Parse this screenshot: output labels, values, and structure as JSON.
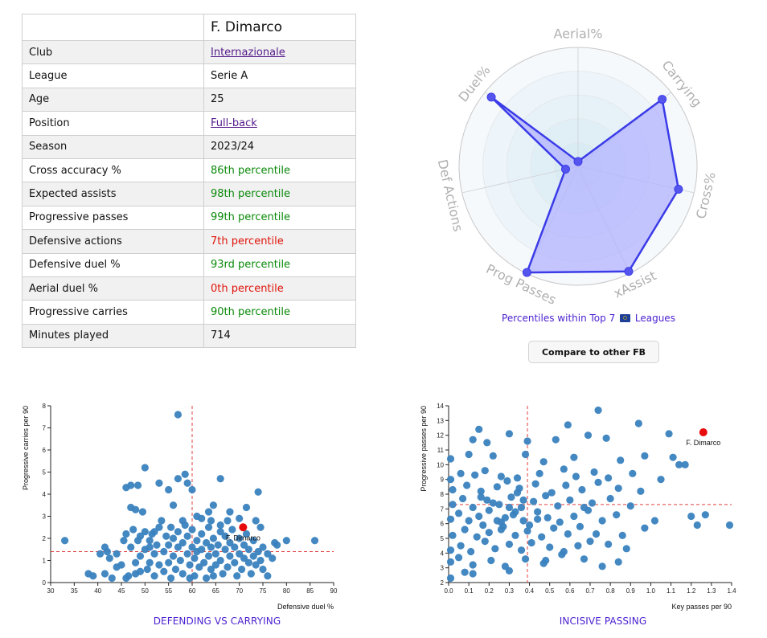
{
  "profile": {
    "name": "F. Dimarco",
    "rows": [
      {
        "label": "Club",
        "value": "Internazionale",
        "kind": "link"
      },
      {
        "label": "League",
        "value": "Serie A",
        "kind": "text"
      },
      {
        "label": "Age",
        "value": "25",
        "kind": "text"
      },
      {
        "label": "Position",
        "value": "Full-back",
        "kind": "link"
      },
      {
        "label": "Season",
        "value": "2023/24",
        "kind": "text"
      },
      {
        "label": "Cross accuracy %",
        "value": "86th percentile",
        "kind": "good"
      },
      {
        "label": "Expected assists",
        "value": "98th percentile",
        "kind": "good"
      },
      {
        "label": "Progressive passes",
        "value": "99th percentile",
        "kind": "good"
      },
      {
        "label": "Defensive actions",
        "value": "7th percentile",
        "kind": "bad"
      },
      {
        "label": "Defensive duel %",
        "value": "93rd percentile",
        "kind": "good"
      },
      {
        "label": "Aerial duel %",
        "value": "0th percentile",
        "kind": "bad"
      },
      {
        "label": "Progressive carries",
        "value": "90th percentile",
        "kind": "good"
      },
      {
        "label": "Minutes played",
        "value": "714",
        "kind": "text"
      }
    ]
  },
  "radar_caption": {
    "before": "Percentiles within Top 7",
    "flag_icon": "eu-flag-icon",
    "after": "Leagues"
  },
  "compare_button": "Compare to other FB",
  "colors": {
    "radar_fill": "#b3b3ff",
    "radar_stroke": "#3b3be8",
    "dots": "#3a82bf",
    "highlight": "#e80b0b",
    "ref_line": "#e04040",
    "title": "#4a1fd0"
  },
  "chart_data": [
    {
      "type": "radar",
      "axes": [
        "Aerial%",
        "Carrying",
        "Cross%",
        "xAssist",
        "Prog Passes",
        "Def Actions",
        "Duel%"
      ],
      "values": [
        0,
        90,
        86,
        98,
        99,
        7,
        93
      ],
      "range": [
        0,
        100
      ],
      "caption": "Percentiles within Top 7 Leagues"
    },
    {
      "type": "scatter",
      "title": "DEFENDING VS CARRYING",
      "xlabel": "Defensive duel %",
      "ylabel": "Progressive carries per 90",
      "xlim": [
        30,
        90
      ],
      "ylim": [
        0,
        8
      ],
      "xticks": [
        30,
        35,
        40,
        45,
        50,
        55,
        60,
        65,
        70,
        75,
        80,
        85,
        90
      ],
      "yticks": [
        0,
        1,
        2,
        3,
        4,
        5,
        6,
        7,
        8
      ],
      "ref_x": 60,
      "ref_y": 1.4,
      "highlight": {
        "label": "F. Dimarco",
        "x": 70.8,
        "y": 2.5
      },
      "points": [
        [
          57,
          7.6
        ],
        [
          50,
          5.2
        ],
        [
          58.5,
          4.9
        ],
        [
          57,
          4.7
        ],
        [
          59,
          4.5
        ],
        [
          66,
          4.7
        ],
        [
          53,
          4.5
        ],
        [
          55,
          4.2
        ],
        [
          60,
          4.2
        ],
        [
          46,
          4.3
        ],
        [
          47,
          4.4
        ],
        [
          48.5,
          4.4
        ],
        [
          74,
          4.1
        ],
        [
          47,
          3.4
        ],
        [
          48,
          3.3
        ],
        [
          49.5,
          3.2
        ],
        [
          56,
          3.5
        ],
        [
          61,
          3
        ],
        [
          63.5,
          3.2
        ],
        [
          64.5,
          3.5
        ],
        [
          68,
          3.2
        ],
        [
          71.5,
          3.4
        ],
        [
          73.5,
          2.8
        ],
        [
          74.5,
          2.5
        ],
        [
          33,
          1.9
        ],
        [
          86,
          1.9
        ],
        [
          80,
          1.9
        ],
        [
          78,
          1.7
        ],
        [
          38,
          0.4
        ],
        [
          39,
          0.3
        ],
        [
          41.5,
          0.4
        ],
        [
          40.5,
          1.3
        ],
        [
          41.5,
          1.6
        ],
        [
          42,
          1.4
        ],
        [
          42.5,
          1.1
        ],
        [
          43,
          0.2
        ],
        [
          44,
          0.7
        ],
        [
          45,
          0.8
        ],
        [
          45.5,
          1.9
        ],
        [
          46,
          2.2
        ],
        [
          46.5,
          0.3
        ],
        [
          46,
          0.2
        ],
        [
          47,
          1.6
        ],
        [
          47.5,
          2.4
        ],
        [
          48,
          0.9
        ],
        [
          48.5,
          1.9
        ],
        [
          49,
          1.2
        ],
        [
          49,
          0.5
        ],
        [
          50,
          2.3
        ],
        [
          50,
          1.5
        ],
        [
          50.5,
          0.6
        ],
        [
          51,
          1.9
        ],
        [
          51,
          0.9
        ],
        [
          51.5,
          2.2
        ],
        [
          52,
          1.3
        ],
        [
          52,
          0.3
        ],
        [
          52.5,
          1.7
        ],
        [
          53,
          2.5
        ],
        [
          53,
          0.8
        ],
        [
          53.5,
          2.8
        ],
        [
          54,
          1.4
        ],
        [
          54,
          0.5
        ],
        [
          54.5,
          2.1
        ],
        [
          55,
          1.7
        ],
        [
          55,
          0.9
        ],
        [
          55.5,
          0.2
        ],
        [
          55.5,
          2.5
        ],
        [
          56,
          1.2
        ],
        [
          56,
          2
        ],
        [
          56.5,
          0.6
        ],
        [
          57,
          1.6
        ],
        [
          57,
          2.3
        ],
        [
          57.5,
          1
        ],
        [
          58,
          1.8
        ],
        [
          58,
          0.4
        ],
        [
          58.5,
          2.6
        ],
        [
          59,
          1.3
        ],
        [
          59,
          2.1
        ],
        [
          59.5,
          0.8
        ],
        [
          60,
          1.6
        ],
        [
          60,
          2.4
        ],
        [
          60.5,
          1.1
        ],
        [
          60.5,
          0.3
        ],
        [
          61,
          1.9
        ],
        [
          61,
          1.4
        ],
        [
          61.5,
          0.7
        ],
        [
          62,
          2.2
        ],
        [
          62,
          1.5
        ],
        [
          62.5,
          0.9
        ],
        [
          63,
          1.8
        ],
        [
          63,
          0.2
        ],
        [
          63.5,
          1.2
        ],
        [
          63.5,
          2.5
        ],
        [
          64,
          1.6
        ],
        [
          64,
          0.6
        ],
        [
          64.5,
          2
        ],
        [
          65,
          1.3
        ],
        [
          65,
          0.8
        ],
        [
          65.5,
          1.7
        ],
        [
          66,
          2.3
        ],
        [
          66,
          1
        ],
        [
          66.5,
          0.4
        ],
        [
          67,
          1.5
        ],
        [
          67,
          2.1
        ],
        [
          67.5,
          0.7
        ],
        [
          68,
          1.8
        ],
        [
          68,
          1.2
        ],
        [
          68.5,
          2.4
        ],
        [
          69,
          0.9
        ],
        [
          69,
          1.6
        ],
        [
          69.5,
          0.3
        ],
        [
          70,
          1.3
        ],
        [
          70,
          2
        ],
        [
          70.5,
          0.6
        ],
        [
          71,
          1.7
        ],
        [
          71,
          1.1
        ],
        [
          71.5,
          2.2
        ],
        [
          72,
          0.9
        ],
        [
          72,
          1.5
        ],
        [
          72.5,
          0.4
        ],
        [
          73,
          1.2
        ],
        [
          73,
          1.9
        ],
        [
          73.5,
          0.8
        ],
        [
          74,
          1.4
        ],
        [
          74.5,
          1
        ],
        [
          75,
          1.6
        ],
        [
          75,
          0.6
        ],
        [
          76,
          1.3
        ],
        [
          76,
          0.3
        ],
        [
          77,
          1.1
        ],
        [
          77.5,
          1.8
        ],
        [
          64,
          2.8
        ],
        [
          62,
          2.9
        ],
        [
          70,
          2.9
        ],
        [
          66,
          2.6
        ],
        [
          58,
          2.8
        ],
        [
          52,
          2.3
        ],
        [
          48,
          0.4
        ],
        [
          44,
          1.3
        ],
        [
          49,
          2.1
        ],
        [
          51,
          1.6
        ],
        [
          59.5,
          0.2
        ],
        [
          64.5,
          0.3
        ],
        [
          67.5,
          2.8
        ]
      ]
    },
    {
      "type": "scatter",
      "title": "INCISIVE PASSING",
      "xlabel": "Key passes per 90",
      "ylabel": "Progressive passes per 90",
      "xlim": [
        0,
        1.4
      ],
      "ylim": [
        2,
        14
      ],
      "xticks": [
        0.0,
        0.1,
        0.2,
        0.3,
        0.4,
        0.5,
        0.6,
        0.7,
        0.8,
        0.9,
        1.0,
        1.1,
        1.2,
        1.3,
        1.4
      ],
      "yticks": [
        2,
        3,
        4,
        5,
        6,
        7,
        8,
        9,
        10,
        11,
        12,
        13,
        14
      ],
      "ref_x": 0.39,
      "ref_y": 7.3,
      "highlight": {
        "label": "F. Dimarco",
        "x": 1.26,
        "y": 12.2
      },
      "points": [
        [
          0.74,
          13.7
        ],
        [
          0.15,
          12.4
        ],
        [
          0.59,
          12.7
        ],
        [
          0.94,
          12.8
        ],
        [
          1.09,
          12.1
        ],
        [
          0.3,
          12.1
        ],
        [
          0.12,
          11.7
        ],
        [
          0.19,
          11.5
        ],
        [
          0.53,
          11.7
        ],
        [
          0.78,
          11.8
        ],
        [
          0.69,
          12
        ],
        [
          0.39,
          11.6
        ],
        [
          0.01,
          10.4
        ],
        [
          0.1,
          10.7
        ],
        [
          0.22,
          10.6
        ],
        [
          0.38,
          10.7
        ],
        [
          0.47,
          10.2
        ],
        [
          0.62,
          10.5
        ],
        [
          0.85,
          10.3
        ],
        [
          0.97,
          10.6
        ],
        [
          1.11,
          10.5
        ],
        [
          1.14,
          10
        ],
        [
          1.17,
          10
        ],
        [
          0.01,
          9
        ],
        [
          0.06,
          9.4
        ],
        [
          0.13,
          9.3
        ],
        [
          0.18,
          9.6
        ],
        [
          0.26,
          9.2
        ],
        [
          0.34,
          9.1
        ],
        [
          0.45,
          9.4
        ],
        [
          0.57,
          9.7
        ],
        [
          0.63,
          9.2
        ],
        [
          0.72,
          9.5
        ],
        [
          0.79,
          9.1
        ],
        [
          0.91,
          9.4
        ],
        [
          1.05,
          9
        ],
        [
          0.02,
          8.3
        ],
        [
          0.09,
          8.6
        ],
        [
          0.16,
          8.2
        ],
        [
          0.24,
          8.5
        ],
        [
          0.29,
          8.9
        ],
        [
          0.35,
          8.4
        ],
        [
          0.43,
          8.7
        ],
        [
          0.51,
          8.1
        ],
        [
          0.58,
          8.6
        ],
        [
          0.66,
          8.3
        ],
        [
          0.74,
          8.8
        ],
        [
          0.84,
          8.4
        ],
        [
          0.95,
          8.2
        ],
        [
          0.02,
          7.3
        ],
        [
          0.07,
          7.7
        ],
        [
          0.12,
          7.1
        ],
        [
          0.19,
          7.6
        ],
        [
          0.25,
          7.3
        ],
        [
          0.31,
          7.8
        ],
        [
          0.36,
          7.1
        ],
        [
          0.42,
          7.5
        ],
        [
          0.48,
          7.9
        ],
        [
          0.54,
          7.2
        ],
        [
          0.6,
          7.6
        ],
        [
          0.67,
          7.1
        ],
        [
          0.71,
          7.4
        ],
        [
          0.8,
          7.7
        ],
        [
          0.9,
          7.2
        ],
        [
          0.01,
          6.3
        ],
        [
          0.05,
          6.7
        ],
        [
          0.1,
          6.2
        ],
        [
          0.15,
          6.5
        ],
        [
          0.2,
          6.9
        ],
        [
          0.26,
          6.1
        ],
        [
          0.32,
          6.6
        ],
        [
          0.37,
          6.2
        ],
        [
          0.44,
          6.8
        ],
        [
          0.49,
          6.4
        ],
        [
          0.55,
          6.1
        ],
        [
          0.62,
          6.5
        ],
        [
          0.69,
          6.9
        ],
        [
          0.76,
          6.2
        ],
        [
          0.83,
          6.6
        ],
        [
          1.02,
          6.2
        ],
        [
          1.2,
          6.5
        ],
        [
          1.27,
          6.6
        ],
        [
          1.39,
          5.9
        ],
        [
          1.23,
          5.9
        ],
        [
          0.97,
          5.7
        ],
        [
          0.02,
          5.2
        ],
        [
          0.08,
          5.6
        ],
        [
          0.14,
          5.1
        ],
        [
          0.2,
          5.4
        ],
        [
          0.27,
          5.8
        ],
        [
          0.33,
          5.2
        ],
        [
          0.39,
          5.5
        ],
        [
          0.46,
          5.1
        ],
        [
          0.52,
          5.7
        ],
        [
          0.59,
          5.3
        ],
        [
          0.65,
          5.8
        ],
        [
          0.73,
          5.3
        ],
        [
          0.86,
          5.2
        ],
        [
          0.01,
          4.2
        ],
        [
          0.06,
          4.5
        ],
        [
          0.11,
          4.1
        ],
        [
          0.18,
          4.8
        ],
        [
          0.23,
          4.3
        ],
        [
          0.3,
          4.6
        ],
        [
          0.36,
          4.2
        ],
        [
          0.41,
          4.7
        ],
        [
          0.5,
          4.4
        ],
        [
          0.57,
          4.1
        ],
        [
          0.64,
          4.5
        ],
        [
          0.7,
          4.8
        ],
        [
          0.79,
          4.6
        ],
        [
          0.88,
          4.3
        ],
        [
          0.01,
          3.4
        ],
        [
          0.05,
          3.7
        ],
        [
          0.12,
          3.2
        ],
        [
          0.21,
          3.5
        ],
        [
          0.28,
          3.1
        ],
        [
          0.38,
          3.6
        ],
        [
          0.47,
          3.3
        ],
        [
          0.56,
          3.9
        ],
        [
          0.67,
          3.6
        ],
        [
          0.76,
          3.1
        ],
        [
          0.84,
          3.4
        ],
        [
          0.01,
          2.3
        ],
        [
          0.12,
          2.6
        ],
        [
          0.3,
          2.8
        ],
        [
          0.08,
          2.7
        ],
        [
          0.48,
          3.5
        ],
        [
          0.3,
          7.1
        ],
        [
          0.28,
          6.4
        ],
        [
          0.33,
          6.8
        ],
        [
          0.24,
          6.2
        ],
        [
          0.22,
          7.4
        ],
        [
          0.37,
          7.6
        ],
        [
          0.44,
          6.3
        ],
        [
          0.26,
          5.6
        ],
        [
          0.17,
          5.9
        ],
        [
          0.4,
          5.9
        ],
        [
          0.34,
          8.1
        ],
        [
          0.16,
          7.8
        ]
      ]
    }
  ]
}
